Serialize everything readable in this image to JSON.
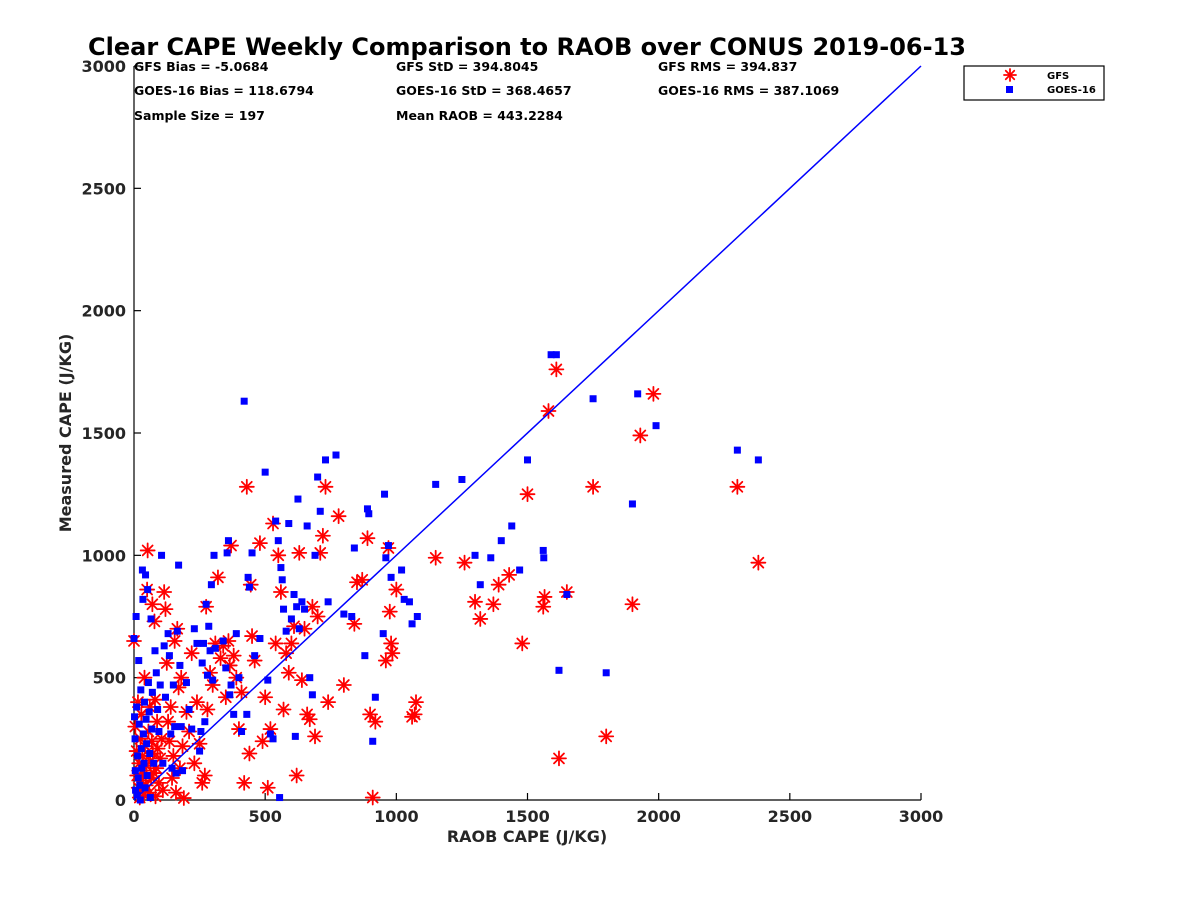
{
  "chart_data": {
    "type": "scatter",
    "title": "Clear CAPE Weekly Comparison to RAOB over CONUS 2019-06-13",
    "xlabel": "RAOB CAPE (J/KG)",
    "ylabel": "Measured CAPE (J/KG)",
    "xlim": [
      0,
      3000
    ],
    "ylim": [
      0,
      3000
    ],
    "xticks": [
      "0",
      "500",
      "1000",
      "1500",
      "2000",
      "2500",
      "3000"
    ],
    "yticks": [
      "0",
      "500",
      "1000",
      "1500",
      "2000",
      "2500",
      "3000"
    ],
    "legend_position": "top-right",
    "stats": [
      [
        "GFS Bias = -5.0684",
        "GFS StD = 394.8045",
        "GFS RMS = 394.837"
      ],
      [
        "GOES-16 Bias = 118.6794",
        "GOES-16 StD = 368.4657",
        "GOES-16 RMS = 387.1069"
      ],
      [
        "Sample Size = 197",
        "Mean RAOB = 443.2284",
        ""
      ]
    ],
    "reference_line": {
      "x": [
        0,
        3000
      ],
      "y": [
        0,
        3000
      ],
      "color": "#0000ff"
    },
    "series": [
      {
        "name": "GFS",
        "marker": "asterisk",
        "color": "#ff0000",
        "points": [
          [
            0,
            650
          ],
          [
            5,
            300
          ],
          [
            10,
            200
          ],
          [
            12,
            100
          ],
          [
            15,
            400
          ],
          [
            18,
            50
          ],
          [
            20,
            150
          ],
          [
            22,
            10
          ],
          [
            25,
            250
          ],
          [
            28,
            350
          ],
          [
            30,
            80
          ],
          [
            32,
            180
          ],
          [
            35,
            120
          ],
          [
            38,
            20
          ],
          [
            40,
            500
          ],
          [
            42,
            220
          ],
          [
            45,
            60
          ],
          [
            48,
            140
          ],
          [
            50,
            860
          ],
          [
            52,
            1020
          ],
          [
            55,
            280
          ],
          [
            58,
            30
          ],
          [
            60,
            380
          ],
          [
            62,
            160
          ],
          [
            65,
            90
          ],
          [
            68,
            240
          ],
          [
            70,
            800
          ],
          [
            72,
            190
          ],
          [
            75,
            110
          ],
          [
            78,
            730
          ],
          [
            80,
            410
          ],
          [
            82,
            15
          ],
          [
            85,
            130
          ],
          [
            88,
            320
          ],
          [
            90,
            210
          ],
          [
            95,
            70
          ],
          [
            100,
            170
          ],
          [
            105,
            250
          ],
          [
            110,
            40
          ],
          [
            115,
            850
          ],
          [
            120,
            780
          ],
          [
            125,
            560
          ],
          [
            130,
            320
          ],
          [
            135,
            240
          ],
          [
            140,
            380
          ],
          [
            145,
            90
          ],
          [
            150,
            180
          ],
          [
            155,
            650
          ],
          [
            160,
            30
          ],
          [
            165,
            700
          ],
          [
            170,
            460
          ],
          [
            175,
            130
          ],
          [
            180,
            500
          ],
          [
            185,
            220
          ],
          [
            190,
            8
          ],
          [
            200,
            360
          ],
          [
            210,
            280
          ],
          [
            220,
            600
          ],
          [
            230,
            150
          ],
          [
            240,
            400
          ],
          [
            250,
            230
          ],
          [
            260,
            70
          ],
          [
            270,
            100
          ],
          [
            275,
            790
          ],
          [
            280,
            370
          ],
          [
            290,
            520
          ],
          [
            300,
            470
          ],
          [
            310,
            640
          ],
          [
            320,
            910
          ],
          [
            330,
            580
          ],
          [
            340,
            630
          ],
          [
            350,
            420
          ],
          [
            360,
            650
          ],
          [
            365,
            550
          ],
          [
            370,
            1040
          ],
          [
            380,
            590
          ],
          [
            390,
            500
          ],
          [
            400,
            290
          ],
          [
            410,
            440
          ],
          [
            420,
            70
          ],
          [
            430,
            1280
          ],
          [
            440,
            190
          ],
          [
            445,
            880
          ],
          [
            450,
            670
          ],
          [
            460,
            570
          ],
          [
            480,
            1050
          ],
          [
            490,
            240
          ],
          [
            500,
            420
          ],
          [
            510,
            50
          ],
          [
            520,
            290
          ],
          [
            530,
            1130
          ],
          [
            540,
            640
          ],
          [
            550,
            1000
          ],
          [
            560,
            850
          ],
          [
            570,
            370
          ],
          [
            580,
            600
          ],
          [
            590,
            520
          ],
          [
            600,
            640
          ],
          [
            610,
            710
          ],
          [
            620,
            100
          ],
          [
            630,
            1010
          ],
          [
            640,
            490
          ],
          [
            650,
            700
          ],
          [
            660,
            350
          ],
          [
            670,
            330
          ],
          [
            680,
            790
          ],
          [
            690,
            260
          ],
          [
            700,
            750
          ],
          [
            710,
            1010
          ],
          [
            720,
            1080
          ],
          [
            730,
            1280
          ],
          [
            740,
            400
          ],
          [
            780,
            1160
          ],
          [
            800,
            470
          ],
          [
            840,
            720
          ],
          [
            850,
            890
          ],
          [
            870,
            900
          ],
          [
            890,
            1070
          ],
          [
            900,
            350
          ],
          [
            910,
            10
          ],
          [
            920,
            320
          ],
          [
            960,
            570
          ],
          [
            970,
            1030
          ],
          [
            975,
            770
          ],
          [
            980,
            640
          ],
          [
            985,
            600
          ],
          [
            1000,
            860
          ],
          [
            1060,
            340
          ],
          [
            1070,
            350
          ],
          [
            1075,
            400
          ],
          [
            1150,
            990
          ],
          [
            1260,
            970
          ],
          [
            1300,
            810
          ],
          [
            1320,
            740
          ],
          [
            1370,
            800
          ],
          [
            1390,
            880
          ],
          [
            1430,
            920
          ],
          [
            1480,
            640
          ],
          [
            1500,
            1250
          ],
          [
            1560,
            790
          ],
          [
            1565,
            830
          ],
          [
            1580,
            1590
          ],
          [
            1610,
            1760
          ],
          [
            1620,
            170
          ],
          [
            1650,
            850
          ],
          [
            1750,
            1280
          ],
          [
            1800,
            260
          ],
          [
            1900,
            800
          ],
          [
            1930,
            1490
          ],
          [
            1980,
            1660
          ],
          [
            2300,
            1280
          ],
          [
            2380,
            970
          ]
        ]
      },
      {
        "name": "GOES-16",
        "marker": "square",
        "color": "#0000ff",
        "points": [
          [
            0,
            660
          ],
          [
            2,
            340
          ],
          [
            4,
            250
          ],
          [
            5,
            120
          ],
          [
            6,
            40
          ],
          [
            8,
            750
          ],
          [
            10,
            380
          ],
          [
            12,
            20
          ],
          [
            14,
            180
          ],
          [
            16,
            90
          ],
          [
            18,
            570
          ],
          [
            20,
            310
          ],
          [
            22,
            60
          ],
          [
            24,
            0
          ],
          [
            26,
            450
          ],
          [
            28,
            210
          ],
          [
            30,
            130
          ],
          [
            32,
            940
          ],
          [
            34,
            820
          ],
          [
            36,
            270
          ],
          [
            38,
            150
          ],
          [
            40,
            400
          ],
          [
            42,
            50
          ],
          [
            44,
            920
          ],
          [
            46,
            330
          ],
          [
            48,
            230
          ],
          [
            50,
            100
          ],
          [
            52,
            860
          ],
          [
            55,
            480
          ],
          [
            58,
            360
          ],
          [
            60,
            190
          ],
          [
            62,
            10
          ],
          [
            65,
            740
          ],
          [
            68,
            290
          ],
          [
            70,
            440
          ],
          [
            75,
            150
          ],
          [
            80,
            610
          ],
          [
            85,
            520
          ],
          [
            90,
            370
          ],
          [
            95,
            280
          ],
          [
            100,
            470
          ],
          [
            105,
            1000
          ],
          [
            110,
            150
          ],
          [
            115,
            630
          ],
          [
            120,
            420
          ],
          [
            130,
            680
          ],
          [
            135,
            590
          ],
          [
            140,
            270
          ],
          [
            145,
            130
          ],
          [
            150,
            470
          ],
          [
            155,
            300
          ],
          [
            160,
            110
          ],
          [
            165,
            690
          ],
          [
            170,
            960
          ],
          [
            175,
            550
          ],
          [
            180,
            300
          ],
          [
            185,
            120
          ],
          [
            200,
            480
          ],
          [
            210,
            370
          ],
          [
            220,
            290
          ],
          [
            230,
            700
          ],
          [
            240,
            640
          ],
          [
            250,
            200
          ],
          [
            255,
            280
          ],
          [
            260,
            560
          ],
          [
            265,
            640
          ],
          [
            270,
            320
          ],
          [
            275,
            800
          ],
          [
            280,
            510
          ],
          [
            285,
            710
          ],
          [
            290,
            610
          ],
          [
            295,
            880
          ],
          [
            300,
            490
          ],
          [
            305,
            1000
          ],
          [
            310,
            620
          ],
          [
            340,
            650
          ],
          [
            350,
            540
          ],
          [
            355,
            1010
          ],
          [
            360,
            1060
          ],
          [
            365,
            430
          ],
          [
            370,
            470
          ],
          [
            380,
            350
          ],
          [
            390,
            680
          ],
          [
            400,
            500
          ],
          [
            410,
            280
          ],
          [
            420,
            1630
          ],
          [
            430,
            350
          ],
          [
            435,
            910
          ],
          [
            440,
            870
          ],
          [
            450,
            1010
          ],
          [
            460,
            590
          ],
          [
            480,
            660
          ],
          [
            500,
            1340
          ],
          [
            510,
            490
          ],
          [
            520,
            270
          ],
          [
            530,
            250
          ],
          [
            540,
            1140
          ],
          [
            550,
            1060
          ],
          [
            555,
            10
          ],
          [
            560,
            950
          ],
          [
            565,
            900
          ],
          [
            570,
            780
          ],
          [
            580,
            690
          ],
          [
            590,
            1130
          ],
          [
            600,
            740
          ],
          [
            610,
            840
          ],
          [
            615,
            260
          ],
          [
            620,
            790
          ],
          [
            625,
            1230
          ],
          [
            630,
            700
          ],
          [
            640,
            810
          ],
          [
            650,
            780
          ],
          [
            660,
            1120
          ],
          [
            670,
            500
          ],
          [
            680,
            430
          ],
          [
            690,
            1000
          ],
          [
            700,
            1320
          ],
          [
            710,
            1180
          ],
          [
            730,
            1390
          ],
          [
            740,
            810
          ],
          [
            770,
            1410
          ],
          [
            800,
            760
          ],
          [
            830,
            750
          ],
          [
            840,
            1030
          ],
          [
            880,
            590
          ],
          [
            890,
            1190
          ],
          [
            895,
            1170
          ],
          [
            910,
            240
          ],
          [
            920,
            420
          ],
          [
            950,
            680
          ],
          [
            955,
            1250
          ],
          [
            960,
            990
          ],
          [
            970,
            1040
          ],
          [
            980,
            910
          ],
          [
            1020,
            940
          ],
          [
            1030,
            820
          ],
          [
            1050,
            810
          ],
          [
            1060,
            720
          ],
          [
            1080,
            750
          ],
          [
            1150,
            1290
          ],
          [
            1250,
            1310
          ],
          [
            1300,
            1000
          ],
          [
            1320,
            880
          ],
          [
            1360,
            990
          ],
          [
            1400,
            1060
          ],
          [
            1440,
            1120
          ],
          [
            1470,
            940
          ],
          [
            1500,
            1390
          ],
          [
            1560,
            1020
          ],
          [
            1562,
            990
          ],
          [
            1590,
            1820
          ],
          [
            1610,
            1820
          ],
          [
            1620,
            530
          ],
          [
            1650,
            840
          ],
          [
            1750,
            1640
          ],
          [
            1800,
            520
          ],
          [
            1900,
            1210
          ],
          [
            1920,
            1660
          ],
          [
            1990,
            1530
          ],
          [
            2300,
            1430
          ],
          [
            2380,
            1390
          ]
        ]
      }
    ]
  }
}
